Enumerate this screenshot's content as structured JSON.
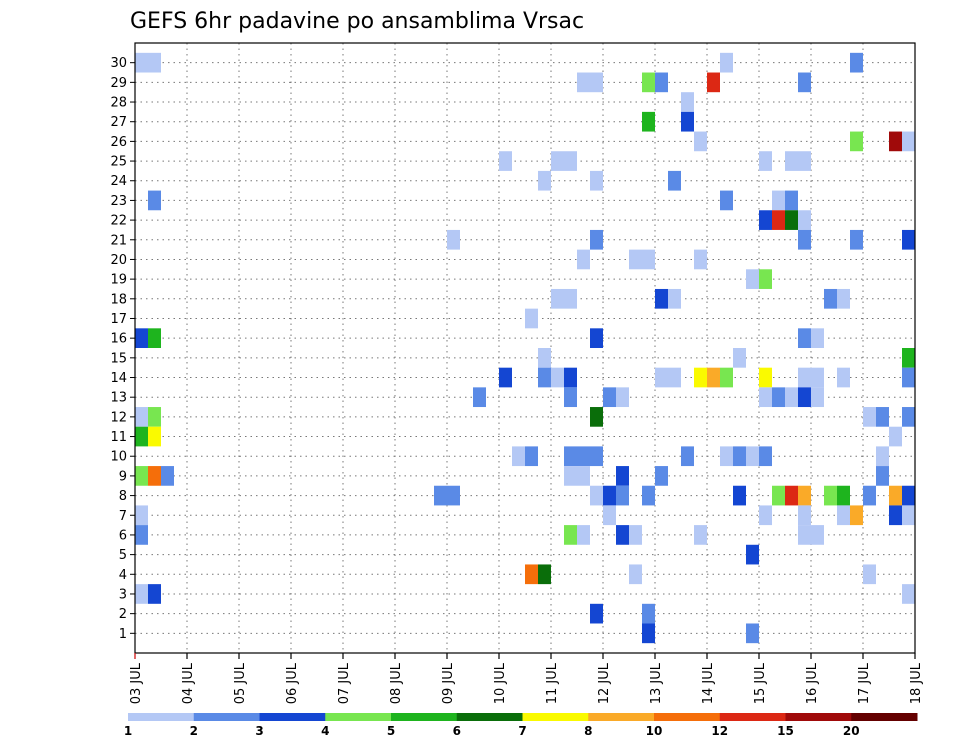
{
  "chart_data": {
    "type": "heatmap",
    "title": "GEFS 6hr padavine po ansamblima Vrsac",
    "x_dates": [
      "03 JUL",
      "04 JUL",
      "05 JUL",
      "06 JUL",
      "07 JUL",
      "08 JUL",
      "09 JUL",
      "10 JUL",
      "11 JUL",
      "12 JUL",
      "13 JUL",
      "14 JUL",
      "15 JUL",
      "16 JUL",
      "17 JUL",
      "18 JUL"
    ],
    "x_steps_per_day": 4,
    "y_labels": [
      "1",
      "2",
      "3",
      "4",
      "5",
      "6",
      "7",
      "8",
      "9",
      "10",
      "11",
      "12",
      "13",
      "14",
      "15",
      "16",
      "17",
      "18",
      "19",
      "20",
      "21",
      "22",
      "23",
      "24",
      "25",
      "26",
      "27",
      "28",
      "29",
      "30"
    ],
    "grid": true,
    "colorbar": {
      "labels": [
        "1",
        "2",
        "3",
        "4",
        "5",
        "6",
        "7",
        "8",
        "10",
        "12",
        "15",
        "20"
      ],
      "colors": [
        "#b4c8f5",
        "#5a8ae6",
        "#1446d2",
        "#78e650",
        "#1eb41e",
        "#0a6e0a",
        "#fafa00",
        "#faaa28",
        "#f56e0a",
        "#dc2814",
        "#a00a0a",
        "#640000"
      ]
    },
    "cells": [
      {
        "step": 0,
        "member": 30,
        "class": 0
      },
      {
        "step": 1,
        "member": 30,
        "class": 0
      },
      {
        "step": 45,
        "member": 30,
        "class": 0
      },
      {
        "step": 55,
        "member": 30,
        "class": 1
      },
      {
        "step": 34,
        "member": 29,
        "class": 0
      },
      {
        "step": 35,
        "member": 29,
        "class": 0
      },
      {
        "step": 39,
        "member": 29,
        "class": 3
      },
      {
        "step": 40,
        "member": 29,
        "class": 1
      },
      {
        "step": 44,
        "member": 29,
        "class": 9
      },
      {
        "step": 51,
        "member": 29,
        "class": 1
      },
      {
        "step": 42,
        "member": 28,
        "class": 0
      },
      {
        "step": 39,
        "member": 27,
        "class": 4
      },
      {
        "step": 42,
        "member": 27,
        "class": 2
      },
      {
        "step": 43,
        "member": 26,
        "class": 0
      },
      {
        "step": 55,
        "member": 26,
        "class": 3
      },
      {
        "step": 58,
        "member": 26,
        "class": 10
      },
      {
        "step": 59,
        "member": 26,
        "class": 0
      },
      {
        "step": 28,
        "member": 25,
        "class": 0
      },
      {
        "step": 32,
        "member": 25,
        "class": 0
      },
      {
        "step": 33,
        "member": 25,
        "class": 0
      },
      {
        "step": 48,
        "member": 25,
        "class": 0
      },
      {
        "step": 50,
        "member": 25,
        "class": 0
      },
      {
        "step": 51,
        "member": 25,
        "class": 0
      },
      {
        "step": 31,
        "member": 24,
        "class": 0
      },
      {
        "step": 35,
        "member": 24,
        "class": 0
      },
      {
        "step": 41,
        "member": 24,
        "class": 1
      },
      {
        "step": 1,
        "member": 23,
        "class": 1
      },
      {
        "step": 45,
        "member": 23,
        "class": 1
      },
      {
        "step": 49,
        "member": 23,
        "class": 0
      },
      {
        "step": 50,
        "member": 23,
        "class": 1
      },
      {
        "step": 48,
        "member": 22,
        "class": 2
      },
      {
        "step": 49,
        "member": 22,
        "class": 9
      },
      {
        "step": 50,
        "member": 22,
        "class": 5
      },
      {
        "step": 51,
        "member": 22,
        "class": 0
      },
      {
        "step": 24,
        "member": 21,
        "class": 0
      },
      {
        "step": 35,
        "member": 21,
        "class": 1
      },
      {
        "step": 51,
        "member": 21,
        "class": 1
      },
      {
        "step": 55,
        "member": 21,
        "class": 1
      },
      {
        "step": 59,
        "member": 21,
        "class": 2
      },
      {
        "step": 34,
        "member": 20,
        "class": 0
      },
      {
        "step": 38,
        "member": 20,
        "class": 0
      },
      {
        "step": 39,
        "member": 20,
        "class": 0
      },
      {
        "step": 43,
        "member": 20,
        "class": 0
      },
      {
        "step": 47,
        "member": 19,
        "class": 0
      },
      {
        "step": 48,
        "member": 19,
        "class": 3
      },
      {
        "step": 32,
        "member": 18,
        "class": 0
      },
      {
        "step": 33,
        "member": 18,
        "class": 0
      },
      {
        "step": 40,
        "member": 18,
        "class": 2
      },
      {
        "step": 41,
        "member": 18,
        "class": 0
      },
      {
        "step": 53,
        "member": 18,
        "class": 1
      },
      {
        "step": 54,
        "member": 18,
        "class": 0
      },
      {
        "step": 30,
        "member": 17,
        "class": 0
      },
      {
        "step": 0,
        "member": 16,
        "class": 2
      },
      {
        "step": 1,
        "member": 16,
        "class": 4
      },
      {
        "step": 35,
        "member": 16,
        "class": 2
      },
      {
        "step": 51,
        "member": 16,
        "class": 1
      },
      {
        "step": 52,
        "member": 16,
        "class": 0
      },
      {
        "step": 31,
        "member": 15,
        "class": 0
      },
      {
        "step": 46,
        "member": 15,
        "class": 0
      },
      {
        "step": 59,
        "member": 15,
        "class": 4
      },
      {
        "step": 28,
        "member": 14,
        "class": 2
      },
      {
        "step": 31,
        "member": 14,
        "class": 1
      },
      {
        "step": 32,
        "member": 14,
        "class": 0
      },
      {
        "step": 33,
        "member": 14,
        "class": 2
      },
      {
        "step": 40,
        "member": 14,
        "class": 0
      },
      {
        "step": 41,
        "member": 14,
        "class": 0
      },
      {
        "step": 43,
        "member": 14,
        "class": 6
      },
      {
        "step": 44,
        "member": 14,
        "class": 7
      },
      {
        "step": 45,
        "member": 14,
        "class": 3
      },
      {
        "step": 48,
        "member": 14,
        "class": 6
      },
      {
        "step": 51,
        "member": 14,
        "class": 0
      },
      {
        "step": 52,
        "member": 14,
        "class": 0
      },
      {
        "step": 54,
        "member": 14,
        "class": 0
      },
      {
        "step": 59,
        "member": 14,
        "class": 1
      },
      {
        "step": 26,
        "member": 13,
        "class": 1
      },
      {
        "step": 33,
        "member": 13,
        "class": 1
      },
      {
        "step": 36,
        "member": 13,
        "class": 1
      },
      {
        "step": 37,
        "member": 13,
        "class": 0
      },
      {
        "step": 48,
        "member": 13,
        "class": 0
      },
      {
        "step": 49,
        "member": 13,
        "class": 1
      },
      {
        "step": 50,
        "member": 13,
        "class": 0
      },
      {
        "step": 51,
        "member": 13,
        "class": 2
      },
      {
        "step": 52,
        "member": 13,
        "class": 0
      },
      {
        "step": 0,
        "member": 12,
        "class": 0
      },
      {
        "step": 1,
        "member": 12,
        "class": 3
      },
      {
        "step": 35,
        "member": 12,
        "class": 5
      },
      {
        "step": 56,
        "member": 12,
        "class": 0
      },
      {
        "step": 57,
        "member": 12,
        "class": 1
      },
      {
        "step": 59,
        "member": 12,
        "class": 1
      },
      {
        "step": 0,
        "member": 11,
        "class": 4
      },
      {
        "step": 1,
        "member": 11,
        "class": 6
      },
      {
        "step": 58,
        "member": 11,
        "class": 0
      },
      {
        "step": 29,
        "member": 10,
        "class": 0
      },
      {
        "step": 30,
        "member": 10,
        "class": 1
      },
      {
        "step": 33,
        "member": 10,
        "class": 1
      },
      {
        "step": 34,
        "member": 10,
        "class": 1
      },
      {
        "step": 35,
        "member": 10,
        "class": 1
      },
      {
        "step": 42,
        "member": 10,
        "class": 1
      },
      {
        "step": 45,
        "member": 10,
        "class": 0
      },
      {
        "step": 46,
        "member": 10,
        "class": 1
      },
      {
        "step": 47,
        "member": 10,
        "class": 0
      },
      {
        "step": 48,
        "member": 10,
        "class": 1
      },
      {
        "step": 57,
        "member": 10,
        "class": 0
      },
      {
        "step": 0,
        "member": 9,
        "class": 3
      },
      {
        "step": 1,
        "member": 9,
        "class": 8
      },
      {
        "step": 2,
        "member": 9,
        "class": 1
      },
      {
        "step": 33,
        "member": 9,
        "class": 0
      },
      {
        "step": 34,
        "member": 9,
        "class": 0
      },
      {
        "step": 37,
        "member": 9,
        "class": 2
      },
      {
        "step": 40,
        "member": 9,
        "class": 1
      },
      {
        "step": 57,
        "member": 9,
        "class": 1
      },
      {
        "step": 23,
        "member": 8,
        "class": 1
      },
      {
        "step": 24,
        "member": 8,
        "class": 1
      },
      {
        "step": 35,
        "member": 8,
        "class": 0
      },
      {
        "step": 36,
        "member": 8,
        "class": 2
      },
      {
        "step": 37,
        "member": 8,
        "class": 1
      },
      {
        "step": 39,
        "member": 8,
        "class": 1
      },
      {
        "step": 46,
        "member": 8,
        "class": 2
      },
      {
        "step": 49,
        "member": 8,
        "class": 3
      },
      {
        "step": 50,
        "member": 8,
        "class": 9
      },
      {
        "step": 51,
        "member": 8,
        "class": 7
      },
      {
        "step": 53,
        "member": 8,
        "class": 3
      },
      {
        "step": 54,
        "member": 8,
        "class": 4
      },
      {
        "step": 56,
        "member": 8,
        "class": 1
      },
      {
        "step": 58,
        "member": 8,
        "class": 7
      },
      {
        "step": 59,
        "member": 8,
        "class": 2
      },
      {
        "step": 0,
        "member": 7,
        "class": 0
      },
      {
        "step": 36,
        "member": 7,
        "class": 0
      },
      {
        "step": 48,
        "member": 7,
        "class": 0
      },
      {
        "step": 51,
        "member": 7,
        "class": 0
      },
      {
        "step": 54,
        "member": 7,
        "class": 0
      },
      {
        "step": 55,
        "member": 7,
        "class": 7
      },
      {
        "step": 58,
        "member": 7,
        "class": 2
      },
      {
        "step": 59,
        "member": 7,
        "class": 0
      },
      {
        "step": 0,
        "member": 6,
        "class": 1
      },
      {
        "step": 33,
        "member": 6,
        "class": 3
      },
      {
        "step": 34,
        "member": 6,
        "class": 0
      },
      {
        "step": 37,
        "member": 6,
        "class": 2
      },
      {
        "step": 38,
        "member": 6,
        "class": 0
      },
      {
        "step": 43,
        "member": 6,
        "class": 0
      },
      {
        "step": 51,
        "member": 6,
        "class": 0
      },
      {
        "step": 52,
        "member": 6,
        "class": 0
      },
      {
        "step": 47,
        "member": 5,
        "class": 2
      },
      {
        "step": 30,
        "member": 4,
        "class": 8
      },
      {
        "step": 31,
        "member": 4,
        "class": 5
      },
      {
        "step": 38,
        "member": 4,
        "class": 0
      },
      {
        "step": 56,
        "member": 4,
        "class": 0
      },
      {
        "step": 0,
        "member": 3,
        "class": 0
      },
      {
        "step": 1,
        "member": 3,
        "class": 2
      },
      {
        "step": 59,
        "member": 3,
        "class": 0
      },
      {
        "step": 35,
        "member": 2,
        "class": 2
      },
      {
        "step": 39,
        "member": 2,
        "class": 1
      },
      {
        "step": 39,
        "member": 1,
        "class": 2
      },
      {
        "step": 47,
        "member": 1,
        "class": 1
      }
    ]
  }
}
